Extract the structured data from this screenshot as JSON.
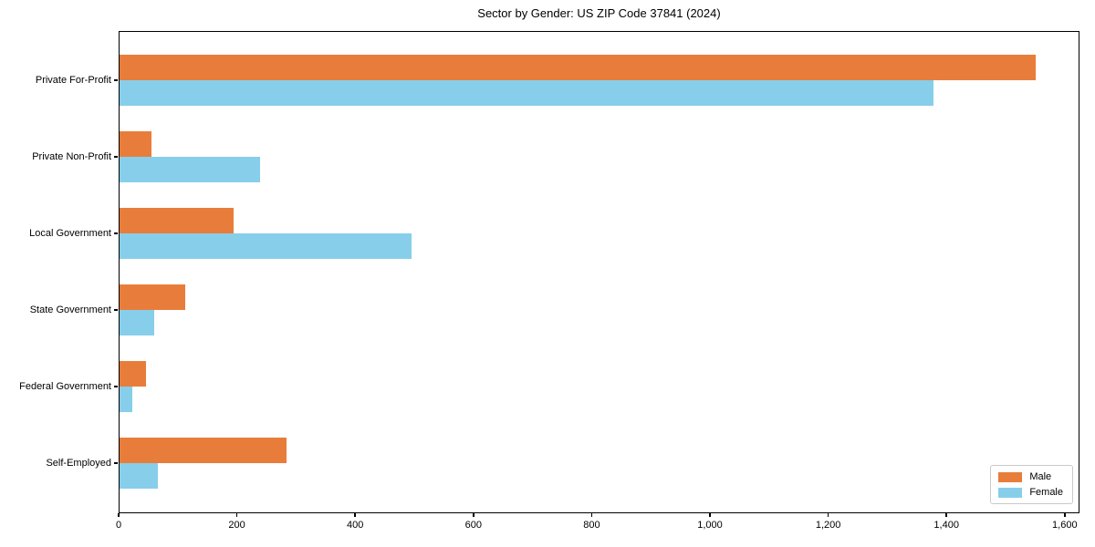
{
  "header": {
    "title": "Sector by Gender: US ZIP Code 37841 (2024)"
  },
  "chart_data": {
    "type": "bar",
    "orientation": "horizontal",
    "title": "Sector by Gender: US ZIP Code 37841 (2024)",
    "categories": [
      "Private For-Profit",
      "Private Non-Profit",
      "Local Government",
      "State Government",
      "Federal Government",
      "Self-Employed"
    ],
    "series": [
      {
        "name": "Male",
        "color": "#e87d3b",
        "values": [
          1550,
          54,
          193,
          111,
          45,
          282
        ]
      },
      {
        "name": "Female",
        "color": "#87ceeb",
        "values": [
          1377,
          237,
          494,
          58,
          21,
          65
        ]
      }
    ],
    "xlabel": "",
    "ylabel": "",
    "xlim": [
      0,
      1625
    ],
    "xticks": [
      0,
      200,
      400,
      600,
      800,
      1000,
      1200,
      1400,
      1600
    ],
    "xtick_labels": [
      "0",
      "200",
      "400",
      "600",
      "800",
      "1,000",
      "1,200",
      "1,400",
      "1,600"
    ],
    "grid": false,
    "legend_position": "lower right",
    "axis_color": "#000000",
    "legend_border_color": "#c9c9c9"
  }
}
